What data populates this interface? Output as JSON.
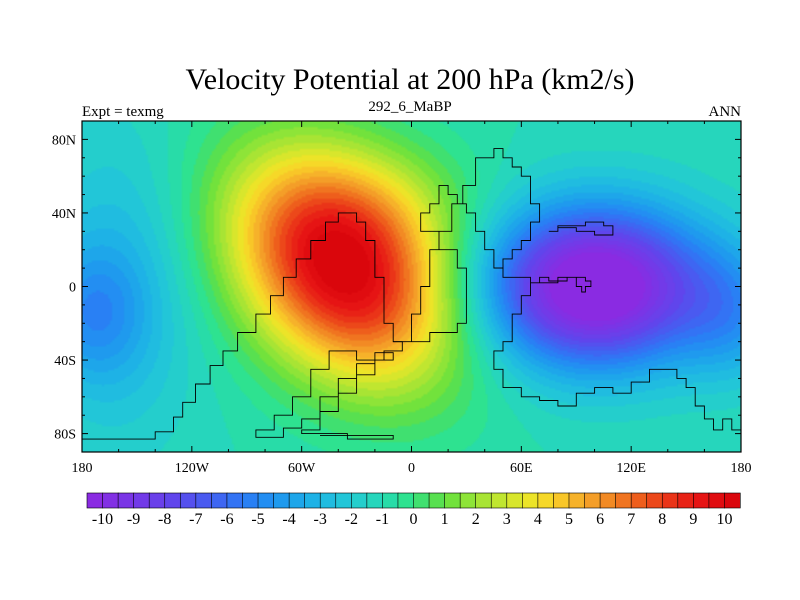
{
  "chart_data": {
    "type": "heatmap",
    "title": "Velocity Potential at 200 hPa (km2/s)",
    "left_label": "Expt = texmg",
    "center_label": "292_6_MaBP",
    "right_label": "ANN",
    "xlim": [
      -180,
      180
    ],
    "ylim": [
      -90,
      90
    ],
    "x_ticks": [
      {
        "value": -180,
        "label": "180"
      },
      {
        "value": -120,
        "label": "120W"
      },
      {
        "value": -60,
        "label": "60W"
      },
      {
        "value": 0,
        "label": "0"
      },
      {
        "value": 60,
        "label": "60E"
      },
      {
        "value": 120,
        "label": "120E"
      },
      {
        "value": 180,
        "label": "180"
      }
    ],
    "y_ticks": [
      {
        "value": 80,
        "label": "80N"
      },
      {
        "value": 40,
        "label": "40N"
      },
      {
        "value": 0,
        "label": "0"
      },
      {
        "value": -40,
        "label": "40S"
      },
      {
        "value": -80,
        "label": "80S"
      }
    ],
    "field_centers": [
      {
        "name": "positive-maximum",
        "lon": -35,
        "lat": 10,
        "value": 10.5
      },
      {
        "name": "negative-minimum",
        "lon": 100,
        "lat": 0,
        "value": -10.5
      }
    ],
    "colorbar": {
      "min": -10.5,
      "max": 10.5,
      "step": 0.5,
      "colors": [
        "#8a2be2",
        "#8230e4",
        "#7a35e6",
        "#723ae8",
        "#6a40ea",
        "#6045ec",
        "#5550ee",
        "#4a5af0",
        "#3e66f2",
        "#3373f4",
        "#2980f4",
        "#238ef2",
        "#1f9aee",
        "#1ea6ea",
        "#1eb2e6",
        "#20bce0",
        "#22c6d8",
        "#24cecc",
        "#26d6bc",
        "#28dca8",
        "#2ee290",
        "#40e070",
        "#58e050",
        "#72e23c",
        "#8ee438",
        "#a8e434",
        "#c0e630",
        "#d8e62c",
        "#ece428",
        "#f6d828",
        "#f8c628",
        "#f6b22a",
        "#f49e28",
        "#f28a24",
        "#f07420",
        "#ee5e1c",
        "#ec481a",
        "#ea3418",
        "#e82216",
        "#e61414",
        "#e00c10",
        "#da060c"
      ],
      "tick_labels": [
        "-10",
        "-9",
        "-8",
        "-7",
        "-6",
        "-5",
        "-4",
        "-3",
        "-2",
        "-1",
        "0",
        "1",
        "2",
        "3",
        "4",
        "5",
        "6",
        "7",
        "8",
        "9",
        "10"
      ]
    },
    "coastline_outline": [
      {
        "name": "south-america-africa-west",
        "points": [
          [
            -180,
            -83
          ],
          [
            -140,
            -83
          ],
          [
            -140,
            -79
          ],
          [
            -130,
            -79
          ],
          [
            -130,
            -71
          ],
          [
            -125,
            -71
          ],
          [
            -125,
            -63
          ],
          [
            -118,
            -63
          ],
          [
            -118,
            -53
          ],
          [
            -110,
            -53
          ],
          [
            -110,
            -43
          ],
          [
            -103,
            -43
          ],
          [
            -103,
            -35
          ],
          [
            -95,
            -35
          ],
          [
            -95,
            -25
          ],
          [
            -85,
            -25
          ],
          [
            -85,
            -15
          ],
          [
            -77,
            -15
          ],
          [
            -77,
            -5
          ],
          [
            -70,
            -5
          ],
          [
            -70,
            5
          ],
          [
            -63,
            5
          ],
          [
            -63,
            15
          ],
          [
            -55,
            15
          ],
          [
            -55,
            25
          ],
          [
            -47,
            25
          ],
          [
            -47,
            35
          ],
          [
            -40,
            35
          ],
          [
            -40,
            40
          ],
          [
            -30,
            40
          ],
          [
            -30,
            35
          ],
          [
            -25,
            35
          ],
          [
            -25,
            25
          ],
          [
            -20,
            25
          ],
          [
            -20,
            5
          ],
          [
            -15,
            5
          ],
          [
            -15,
            -20
          ],
          [
            -10,
            -20
          ],
          [
            -10,
            -30
          ],
          [
            -5,
            -30
          ],
          [
            -5,
            -35
          ],
          [
            -15,
            -35
          ],
          [
            -15,
            -40
          ],
          [
            -30,
            -40
          ],
          [
            -30,
            -35
          ],
          [
            -45,
            -35
          ],
          [
            -45,
            -45
          ],
          [
            -55,
            -45
          ],
          [
            -55,
            -60
          ],
          [
            -65,
            -60
          ],
          [
            -65,
            -70
          ],
          [
            -75,
            -70
          ],
          [
            -75,
            -78
          ],
          [
            -85,
            -78
          ],
          [
            -85,
            -82
          ],
          [
            -70,
            -82
          ],
          [
            -70,
            -77
          ],
          [
            -60,
            -77
          ],
          [
            -60,
            -72
          ],
          [
            -50,
            -72
          ],
          [
            -50,
            -60
          ],
          [
            -40,
            -60
          ],
          [
            -40,
            -50
          ],
          [
            -30,
            -50
          ],
          [
            -30,
            -42
          ],
          [
            -20,
            -42
          ],
          [
            -20,
            -36
          ],
          [
            -10,
            -36
          ],
          [
            -10,
            -40
          ],
          [
            -20,
            -40
          ],
          [
            -20,
            -48
          ],
          [
            -30,
            -48
          ],
          [
            -30,
            -58
          ],
          [
            -40,
            -58
          ],
          [
            -40,
            -68
          ],
          [
            -50,
            -68
          ],
          [
            -50,
            -78
          ],
          [
            -60,
            -78
          ],
          [
            -60,
            -80
          ],
          [
            -35,
            -80
          ],
          [
            -35,
            -83
          ],
          [
            -10,
            -83
          ],
          [
            -10,
            -81
          ],
          [
            -50,
            -81
          ]
        ]
      },
      {
        "name": "africa-europe-asia",
        "points": [
          [
            -10,
            -30
          ],
          [
            0,
            -30
          ],
          [
            0,
            -15
          ],
          [
            5,
            -15
          ],
          [
            5,
            0
          ],
          [
            10,
            0
          ],
          [
            10,
            20
          ],
          [
            15,
            20
          ],
          [
            15,
            30
          ],
          [
            22,
            30
          ],
          [
            22,
            45
          ],
          [
            28,
            45
          ],
          [
            28,
            55
          ],
          [
            35,
            55
          ],
          [
            35,
            70
          ],
          [
            45,
            70
          ],
          [
            45,
            75
          ],
          [
            50,
            75
          ],
          [
            50,
            70
          ],
          [
            55,
            70
          ],
          [
            55,
            65
          ],
          [
            60,
            65
          ],
          [
            60,
            60
          ],
          [
            65,
            60
          ],
          [
            65,
            45
          ],
          [
            70,
            45
          ],
          [
            70,
            35
          ],
          [
            65,
            35
          ],
          [
            65,
            25
          ],
          [
            60,
            25
          ],
          [
            60,
            20
          ],
          [
            55,
            20
          ],
          [
            55,
            15
          ],
          [
            50,
            15
          ],
          [
            50,
            10
          ],
          [
            45,
            10
          ],
          [
            45,
            20
          ],
          [
            40,
            20
          ],
          [
            40,
            30
          ],
          [
            35,
            30
          ],
          [
            35,
            40
          ],
          [
            30,
            40
          ],
          [
            30,
            45
          ],
          [
            25,
            45
          ],
          [
            25,
            50
          ],
          [
            20,
            50
          ],
          [
            20,
            55
          ],
          [
            15,
            55
          ],
          [
            15,
            45
          ],
          [
            10,
            45
          ],
          [
            10,
            40
          ],
          [
            5,
            40
          ],
          [
            5,
            30
          ],
          [
            15,
            30
          ],
          [
            15,
            20
          ],
          [
            25,
            20
          ],
          [
            25,
            10
          ],
          [
            30,
            10
          ],
          [
            30,
            -20
          ],
          [
            25,
            -20
          ],
          [
            25,
            -25
          ],
          [
            10,
            -25
          ],
          [
            10,
            -30
          ],
          [
            -10,
            -30
          ]
        ]
      },
      {
        "name": "asia-east-australia",
        "points": [
          [
            45,
            10
          ],
          [
            50,
            10
          ],
          [
            50,
            5
          ],
          [
            65,
            5
          ],
          [
            65,
            2
          ],
          [
            70,
            2
          ],
          [
            70,
            5
          ],
          [
            75,
            5
          ],
          [
            75,
            3
          ],
          [
            85,
            3
          ],
          [
            85,
            5
          ],
          [
            90,
            5
          ],
          [
            90,
            0
          ],
          [
            93,
            0
          ],
          [
            93,
            -3
          ],
          [
            95,
            -3
          ],
          [
            95,
            0
          ],
          [
            98,
            0
          ],
          [
            98,
            3
          ],
          [
            95,
            3
          ],
          [
            95,
            5
          ],
          [
            85,
            5
          ],
          [
            80,
            5
          ],
          [
            80,
            2
          ],
          [
            75,
            2
          ],
          [
            70,
            2
          ],
          [
            65,
            2
          ],
          [
            65,
            -5
          ],
          [
            60,
            -5
          ],
          [
            60,
            -15
          ],
          [
            55,
            -15
          ],
          [
            55,
            -30
          ],
          [
            50,
            -30
          ],
          [
            50,
            -35
          ],
          [
            45,
            -35
          ],
          [
            45,
            -45
          ],
          [
            50,
            -45
          ],
          [
            50,
            -55
          ],
          [
            60,
            -55
          ],
          [
            60,
            -60
          ],
          [
            70,
            -60
          ],
          [
            70,
            -62
          ],
          [
            80,
            -62
          ],
          [
            80,
            -65
          ],
          [
            90,
            -65
          ],
          [
            90,
            -58
          ],
          [
            100,
            -58
          ],
          [
            100,
            -55
          ],
          [
            110,
            -55
          ],
          [
            110,
            -58
          ],
          [
            120,
            -58
          ],
          [
            120,
            -52
          ],
          [
            130,
            -52
          ],
          [
            130,
            -45
          ],
          [
            145,
            -45
          ],
          [
            145,
            -50
          ],
          [
            150,
            -50
          ],
          [
            150,
            -55
          ],
          [
            155,
            -55
          ],
          [
            155,
            -65
          ],
          [
            160,
            -65
          ],
          [
            160,
            -72
          ],
          [
            165,
            -72
          ],
          [
            165,
            -78
          ],
          [
            170,
            -78
          ],
          [
            170,
            -72
          ],
          [
            175,
            -72
          ],
          [
            175,
            -78
          ],
          [
            180,
            -78
          ]
        ]
      },
      {
        "name": "asia-northeast",
        "points": [
          [
            75,
            30
          ],
          [
            80,
            30
          ],
          [
            80,
            33
          ],
          [
            95,
            33
          ],
          [
            95,
            35
          ],
          [
            105,
            35
          ],
          [
            105,
            33
          ],
          [
            110,
            33
          ],
          [
            110,
            28
          ],
          [
            100,
            28
          ],
          [
            100,
            30
          ],
          [
            90,
            30
          ],
          [
            90,
            32
          ],
          [
            80,
            32
          ],
          [
            80,
            30
          ]
        ]
      }
    ]
  }
}
